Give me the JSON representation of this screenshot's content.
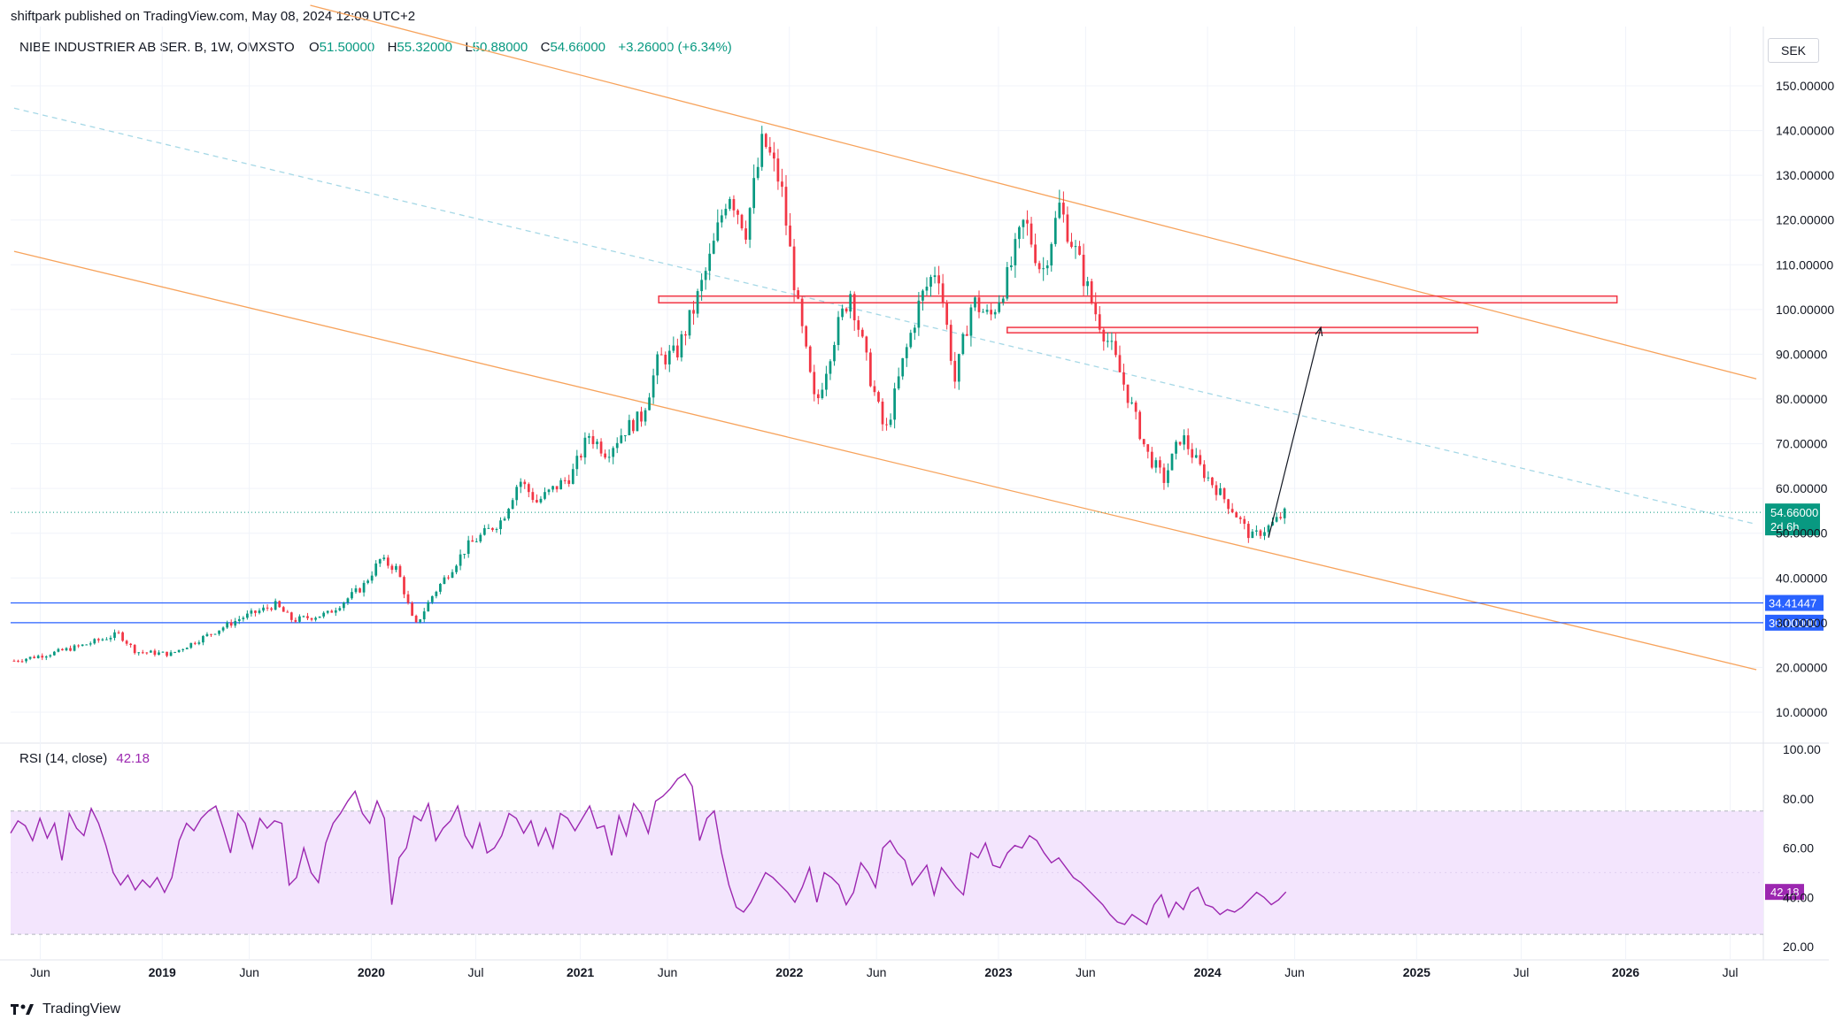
{
  "header": {
    "published_line": "shiftpark published on TradingView.com, May 08, 2024 12:09 UTC+2",
    "currency": "SEK",
    "footer_brand": "TradingView"
  },
  "symbol": {
    "name": "NIBE INDUSTRIER AB SER. B, 1W, OMXSTO",
    "o_label": "O",
    "o_value": "51.50000",
    "h_label": "H",
    "h_value": "55.32000",
    "l_label": "L",
    "l_value": "50.88000",
    "c_label": "C",
    "c_value": "54.66000",
    "change": "+3.26000 (+6.34%)"
  },
  "colors": {
    "up": "#089981",
    "down": "#f23645",
    "channel": "#f7a35c",
    "midline": "#a6d8e6",
    "support": "#2962ff",
    "zone": "#f23645",
    "rsi": "#9c27b0",
    "rsi_band": "#f3e5fd"
  },
  "chart_data": [
    {
      "type": "candlestick",
      "title": "",
      "timeframe": "1W",
      "y_axis": {
        "ylim": [
          0,
          160
        ],
        "ticks": [
          "10.00000",
          "20.00000",
          "30.00000",
          "40.00000",
          "50.00000",
          "60.00000",
          "70.00000",
          "80.00000",
          "90.00000",
          "100.00000",
          "110.00000",
          "120.00000",
          "130.00000",
          "140.00000",
          "150.00000"
        ]
      },
      "x_axis": {
        "ticks": [
          "Jun",
          "2019",
          "Jun",
          "2020",
          "Jul",
          "2021",
          "Jun",
          "2022",
          "Jun",
          "2023",
          "Jun",
          "2024",
          "Jun",
          "2025",
          "Jul",
          "2026",
          "Jul"
        ]
      },
      "ohlc_close_path": [
        [
          "2018-04",
          21.5
        ],
        [
          "2018-06",
          23
        ],
        [
          "2018-08",
          25
        ],
        [
          "2018-10",
          27.5
        ],
        [
          "2018-11",
          23.5
        ],
        [
          "2019-01",
          23
        ],
        [
          "2019-03",
          27
        ],
        [
          "2019-05",
          31
        ],
        [
          "2019-07",
          34
        ],
        [
          "2019-08",
          30.5
        ],
        [
          "2019-10",
          32
        ],
        [
          "2019-12",
          38
        ],
        [
          "2020-01",
          44
        ],
        [
          "2020-02",
          42
        ],
        [
          "2020-03",
          29
        ],
        [
          "2020-04",
          36
        ],
        [
          "2020-06",
          47
        ],
        [
          "2020-08",
          53
        ],
        [
          "2020-09",
          62
        ],
        [
          "2020-10",
          57
        ],
        [
          "2020-12",
          63
        ],
        [
          "2021-01",
          72
        ],
        [
          "2021-02",
          68
        ],
        [
          "2021-03",
          73
        ],
        [
          "2021-04",
          76
        ],
        [
          "2021-05",
          89
        ],
        [
          "2021-06",
          90
        ],
        [
          "2021-07",
          100
        ],
        [
          "2021-08",
          112
        ],
        [
          "2021-09",
          127
        ],
        [
          "2021-10",
          118
        ],
        [
          "2021-11",
          138
        ],
        [
          "2021-12",
          128
        ],
        [
          "2022-01",
          100
        ],
        [
          "2022-02",
          78
        ],
        [
          "2022-03",
          93
        ],
        [
          "2022-04",
          104
        ],
        [
          "2022-05",
          87
        ],
        [
          "2022-06",
          72
        ],
        [
          "2022-07",
          88
        ],
        [
          "2022-08",
          102
        ],
        [
          "2022-09",
          110
        ],
        [
          "2022-10",
          84
        ],
        [
          "2022-11",
          102
        ],
        [
          "2022-12",
          98
        ],
        [
          "2023-01",
          107
        ],
        [
          "2023-02",
          120
        ],
        [
          "2023-03",
          108
        ],
        [
          "2023-04",
          123
        ],
        [
          "2023-05",
          112
        ],
        [
          "2023-06",
          100
        ],
        [
          "2023-07",
          91
        ],
        [
          "2023-08",
          80
        ],
        [
          "2023-09",
          68
        ],
        [
          "2023-10",
          62
        ],
        [
          "2023-11",
          72
        ],
        [
          "2023-12",
          65
        ],
        [
          "2024-01",
          60
        ],
        [
          "2024-02",
          55
        ],
        [
          "2024-03",
          49
        ],
        [
          "2024-04",
          51.4
        ],
        [
          "2024-05",
          54.66
        ]
      ],
      "last_price": {
        "value": 54.66,
        "label": "54.66000",
        "countdown": "2d 6h"
      },
      "levels": [
        {
          "label": "34.41447",
          "value": 34.41447
        },
        {
          "label": "30.00000",
          "value": 30.0
        }
      ],
      "zones": [
        {
          "from": "2021-05",
          "to": "2025-12",
          "low": 101.5,
          "high": 103.0
        },
        {
          "from": "2023-01",
          "to": "2025-04",
          "low": 94.8,
          "high": 96.0
        }
      ],
      "channel": {
        "upper": [
          [
            "2019-09",
            168
          ],
          [
            "2026-08",
            84.5
          ]
        ],
        "lower": [
          [
            "2018-04",
            113
          ],
          [
            "2026-08",
            19.5
          ]
        ],
        "mid": [
          [
            "2018-04",
            145
          ],
          [
            "2026-08",
            52
          ]
        ]
      },
      "projection_arrow": [
        [
          "2024-04",
          49
        ],
        [
          "2024-07",
          96
        ]
      ]
    },
    {
      "type": "line",
      "title": "RSI (14, close)",
      "current_value": "42.18",
      "current_value_num": 42.18,
      "ylim": [
        10,
        100
      ],
      "band": [
        25,
        75
      ],
      "y_ticks": [
        "20.00",
        "40.00",
        "60.00",
        "80.00",
        "100.00"
      ],
      "series": [
        {
          "values": [
            66,
            71,
            69,
            63,
            72,
            64,
            70,
            55,
            74,
            68,
            65,
            76,
            70,
            61,
            50,
            45,
            49,
            43,
            47,
            44,
            48,
            42,
            48,
            63,
            70,
            67,
            72,
            75,
            77,
            68,
            58,
            74,
            70,
            60,
            72,
            68,
            71,
            70,
            45,
            48,
            60,
            50,
            46,
            62,
            70,
            74,
            79,
            83,
            74,
            70,
            79,
            72,
            37,
            56,
            60,
            73,
            71,
            78,
            63,
            68,
            71,
            77,
            65,
            60,
            70,
            58,
            60,
            65,
            74,
            72,
            66,
            71,
            61,
            68,
            60,
            74,
            72,
            67,
            72,
            77,
            68,
            69,
            57,
            73,
            65,
            78,
            74,
            66,
            79,
            81,
            84,
            88,
            90,
            85,
            63,
            72,
            75,
            58,
            45,
            36,
            34,
            38,
            44,
            50,
            48,
            45,
            42,
            38,
            44,
            52,
            38,
            50,
            48,
            45,
            37,
            42,
            54,
            50,
            44,
            60,
            63,
            58,
            55,
            45,
            49,
            53,
            41,
            52,
            48,
            44,
            41,
            58,
            56,
            62,
            53,
            52,
            58,
            61,
            60,
            65,
            63,
            58,
            54,
            56,
            52,
            48,
            46,
            43,
            40,
            37,
            33,
            30,
            29,
            33,
            31,
            29,
            37,
            41,
            32,
            38,
            35,
            42,
            44,
            37,
            36,
            33,
            35,
            34,
            36,
            39,
            42,
            40,
            37,
            39,
            42.18
          ]
        }
      ]
    }
  ]
}
